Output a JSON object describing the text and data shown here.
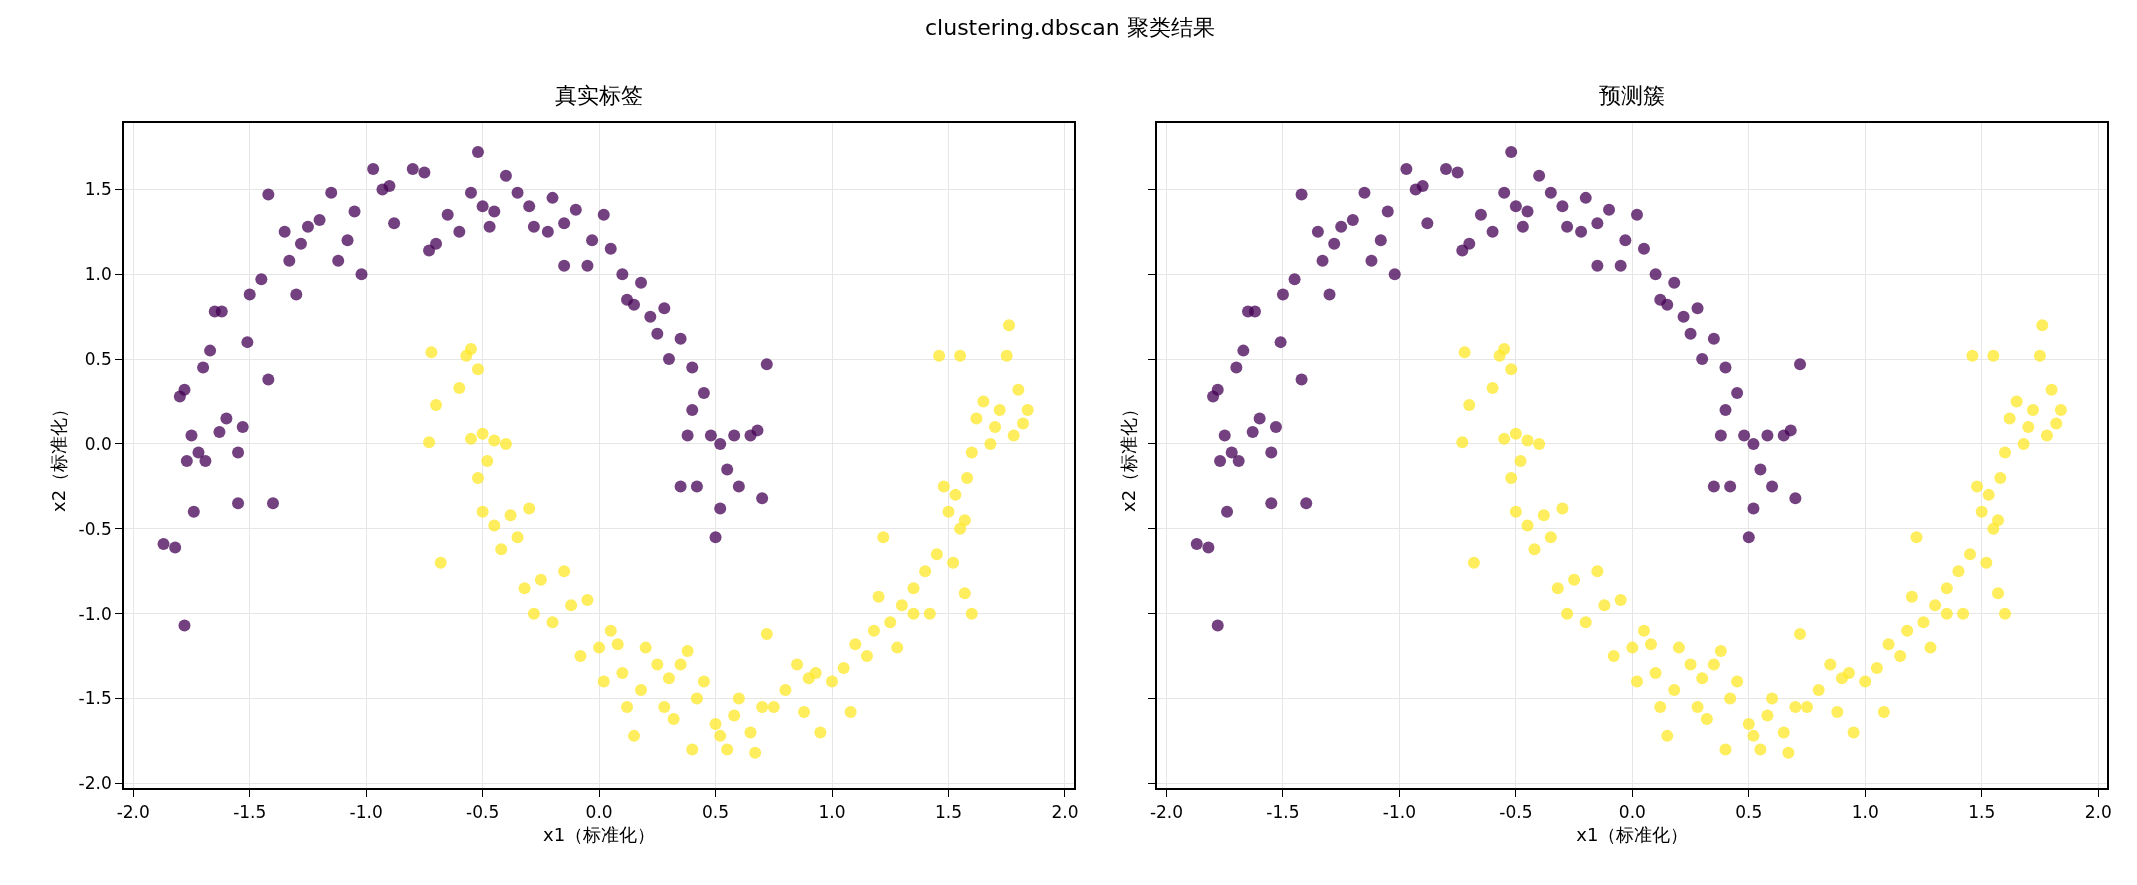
{
  "chart_data": [
    {
      "type": "scatter",
      "title": "真实标签",
      "xlabel": "x1（标准化）",
      "ylabel": "x2（标准化）",
      "annotations": [
        "clustering.dbscan 聚类结果"
      ],
      "xlim": [
        -2.04,
        2.04
      ],
      "ylim": [
        -2.03,
        1.89
      ],
      "xticks": [
        {
          "value": -2,
          "label": "-2.0"
        },
        {
          "value": -1.5,
          "label": "-1.5"
        },
        {
          "value": -1,
          "label": "-1.0"
        },
        {
          "value": -0.5,
          "label": "-0.5"
        },
        {
          "value": 0,
          "label": "0.0"
        },
        {
          "value": 0.5,
          "label": "0.5"
        },
        {
          "value": 1,
          "label": "1.0"
        },
        {
          "value": 1.5,
          "label": "1.5"
        },
        {
          "value": 2,
          "label": "2.0"
        }
      ],
      "yticks": [
        {
          "value": -2,
          "label": "-2.0"
        },
        {
          "value": -1.5,
          "label": "-1.5"
        },
        {
          "value": -1,
          "label": "-1.0"
        },
        {
          "value": -0.5,
          "label": "-0.5"
        },
        {
          "value": 0,
          "label": "0.0"
        },
        {
          "value": 0.5,
          "label": "0.5"
        },
        {
          "value": 1,
          "label": "1.0"
        },
        {
          "value": 1.5,
          "label": "1.5"
        }
      ],
      "grid": true,
      "marker": "circle",
      "series": [
        {
          "color": "#440154",
          "x": [
            -1.87,
            -1.82,
            -1.78,
            -1.8,
            -1.78,
            -1.77,
            -1.75,
            -1.74,
            -1.72,
            -1.7,
            -1.69,
            -1.67,
            -1.65,
            -1.62,
            -1.63,
            -1.6,
            -1.55,
            -1.55,
            -1.53,
            -1.51,
            -1.5,
            -1.45,
            -1.42,
            -1.42,
            -1.4,
            -1.35,
            -1.33,
            -1.3,
            -1.28,
            -1.25,
            -1.2,
            -1.15,
            -1.12,
            -1.08,
            -1.05,
            -1.02,
            -0.97,
            -0.93,
            -0.9,
            -0.88,
            -0.8,
            -0.75,
            -0.73,
            -0.7,
            -0.65,
            -0.6,
            -0.55,
            -0.52,
            -0.5,
            -0.45,
            -0.4,
            -0.35,
            -0.3,
            -0.28,
            -0.22,
            -0.2,
            -0.15,
            -0.1,
            -0.05,
            -0.03,
            0.02,
            0.05,
            0.1,
            0.12,
            0.15,
            0.18,
            0.22,
            0.25,
            0.28,
            0.35,
            0.4,
            0.45,
            0.4,
            0.48,
            0.52,
            0.58,
            0.65,
            0.55,
            0.6,
            0.52,
            0.5,
            0.42,
            0.7,
            0.68,
            0.72,
            0.38,
            -0.47,
            -0.15,
            0.3,
            0.35
          ],
          "values": [
            -0.59,
            -0.61,
            -1.07,
            0.28,
            0.32,
            -0.1,
            0.05,
            -0.4,
            -0.05,
            0.45,
            -0.1,
            0.55,
            0.78,
            0.78,
            0.07,
            0.15,
            -0.05,
            -0.35,
            0.1,
            0.6,
            0.88,
            0.97,
            1.47,
            0.38,
            -0.35,
            1.25,
            1.08,
            0.88,
            1.18,
            1.28,
            1.32,
            1.48,
            1.08,
            1.2,
            1.37,
            1.0,
            1.62,
            1.5,
            1.52,
            1.3,
            1.62,
            1.6,
            1.14,
            1.18,
            1.35,
            1.25,
            1.48,
            1.72,
            1.4,
            1.37,
            1.58,
            1.48,
            1.4,
            1.28,
            1.25,
            1.45,
            1.3,
            1.38,
            1.05,
            1.2,
            1.35,
            1.15,
            1.0,
            0.85,
            0.82,
            0.95,
            0.75,
            0.65,
            0.8,
            0.62,
            0.45,
            0.3,
            0.2,
            0.05,
            0.0,
            0.05,
            0.05,
            -0.15,
            -0.25,
            -0.38,
            -0.55,
            -0.25,
            -0.32,
            0.08,
            0.47,
            0.05,
            1.28,
            1.05,
            0.5,
            -0.25
          ]
        },
        {
          "color": "#fde725",
          "x": [
            -0.72,
            -0.7,
            -0.73,
            -0.68,
            -0.6,
            -0.57,
            -0.55,
            -0.52,
            -0.55,
            -0.5,
            -0.48,
            -0.45,
            -0.4,
            -0.52,
            -0.5,
            -0.45,
            -0.42,
            -0.38,
            -0.35,
            -0.3,
            -0.32,
            -0.28,
            -0.25,
            -0.2,
            -0.15,
            -0.12,
            -0.08,
            -0.05,
            0.0,
            0.02,
            0.05,
            0.08,
            0.1,
            0.12,
            0.15,
            0.18,
            0.2,
            0.25,
            0.28,
            0.3,
            0.32,
            0.35,
            0.38,
            0.4,
            0.42,
            0.45,
            0.5,
            0.52,
            0.55,
            0.58,
            0.6,
            0.65,
            0.67,
            0.7,
            0.75,
            0.8,
            0.85,
            0.88,
            0.9,
            0.93,
            0.95,
            1.0,
            1.05,
            1.08,
            1.1,
            1.15,
            1.18,
            1.2,
            1.22,
            1.25,
            1.28,
            1.3,
            1.35,
            1.4,
            1.42,
            1.45,
            1.48,
            1.5,
            1.52,
            1.53,
            1.55,
            1.57,
            1.58,
            1.6,
            1.62,
            1.65,
            1.68,
            1.7,
            1.72,
            1.75,
            1.76,
            1.78,
            1.8,
            1.82,
            1.84,
            1.46,
            1.55,
            1.6,
            1.57,
            1.35,
            0.72
          ],
          "values": [
            0.54,
            0.23,
            0.01,
            -0.7,
            0.33,
            0.52,
            0.56,
            0.44,
            0.03,
            0.06,
            -0.1,
            0.02,
            0.0,
            -0.2,
            -0.4,
            -0.48,
            -0.62,
            -0.42,
            -0.55,
            -0.38,
            -0.85,
            -1.0,
            -0.8,
            -1.05,
            -0.75,
            -0.95,
            -1.25,
            -0.92,
            -1.2,
            -1.4,
            -1.1,
            -1.18,
            -1.35,
            -1.55,
            -1.72,
            -1.45,
            -1.2,
            -1.3,
            -1.55,
            -1.38,
            -1.62,
            -1.3,
            -1.22,
            -1.8,
            -1.5,
            -1.4,
            -1.65,
            -1.72,
            -1.8,
            -1.6,
            -1.5,
            -1.7,
            -1.82,
            -1.55,
            -1.55,
            -1.45,
            -1.3,
            -1.58,
            -1.38,
            -1.35,
            -1.7,
            -1.4,
            -1.32,
            -1.58,
            -1.18,
            -1.25,
            -1.1,
            -0.9,
            -0.55,
            -1.05,
            -1.2,
            -0.95,
            -0.85,
            -0.75,
            -1.0,
            -0.65,
            -0.25,
            -0.4,
            -0.7,
            -0.3,
            -0.5,
            -0.45,
            -0.2,
            -0.05,
            0.15,
            0.25,
            0.0,
            0.1,
            0.2,
            0.52,
            0.7,
            0.05,
            0.32,
            0.12,
            0.2,
            0.52,
            0.52,
            -1.0,
            -0.88,
            -1.0,
            -1.12
          ]
        }
      ]
    },
    {
      "type": "scatter",
      "title": "预测簇",
      "xlabel": "x1（标准化）",
      "ylabel": "x2（标准化）",
      "tick_labels": "x",
      "xlim": [
        -2.04,
        2.04
      ],
      "ylim": [
        -2.03,
        1.89
      ],
      "xticks": [
        {
          "value": -2,
          "label": "-2.0"
        },
        {
          "value": -1.5,
          "label": "-1.5"
        },
        {
          "value": -1,
          "label": "-1.0"
        },
        {
          "value": -0.5,
          "label": "-0.5"
        },
        {
          "value": 0,
          "label": "0.0"
        },
        {
          "value": 0.5,
          "label": "0.5"
        },
        {
          "value": 1,
          "label": "1.0"
        },
        {
          "value": 1.5,
          "label": "1.5"
        },
        {
          "value": 2,
          "label": "2.0"
        }
      ],
      "yticks": [
        {
          "value": -2,
          "label": null
        },
        {
          "value": -1.5,
          "label": null
        },
        {
          "value": -1,
          "label": null
        },
        {
          "value": -0.5,
          "label": null
        },
        {
          "value": 0,
          "label": null
        },
        {
          "value": 0.5,
          "label": null
        },
        {
          "value": 1,
          "label": null
        },
        {
          "value": 1.5,
          "label": null
        }
      ],
      "grid": true,
      "marker": "circle",
      "series": [
        {
          "color": "#440154",
          "x": [
            -1.87,
            -1.82,
            -1.78,
            -1.8,
            -1.78,
            -1.77,
            -1.75,
            -1.74,
            -1.72,
            -1.7,
            -1.69,
            -1.67,
            -1.65,
            -1.62,
            -1.63,
            -1.6,
            -1.55,
            -1.55,
            -1.53,
            -1.51,
            -1.5,
            -1.45,
            -1.42,
            -1.42,
            -1.4,
            -1.35,
            -1.33,
            -1.3,
            -1.28,
            -1.25,
            -1.2,
            -1.15,
            -1.12,
            -1.08,
            -1.05,
            -1.02,
            -0.97,
            -0.93,
            -0.9,
            -0.88,
            -0.8,
            -0.75,
            -0.73,
            -0.7,
            -0.65,
            -0.6,
            -0.55,
            -0.52,
            -0.5,
            -0.45,
            -0.4,
            -0.35,
            -0.3,
            -0.28,
            -0.22,
            -0.2,
            -0.15,
            -0.1,
            -0.05,
            -0.03,
            0.02,
            0.05,
            0.1,
            0.12,
            0.15,
            0.18,
            0.22,
            0.25,
            0.28,
            0.35,
            0.4,
            0.45,
            0.4,
            0.48,
            0.52,
            0.58,
            0.65,
            0.55,
            0.6,
            0.52,
            0.5,
            0.42,
            0.7,
            0.68,
            0.72,
            0.38,
            -0.47,
            -0.15,
            0.3,
            0.35
          ],
          "values": [
            -0.59,
            -0.61,
            -1.07,
            0.28,
            0.32,
            -0.1,
            0.05,
            -0.4,
            -0.05,
            0.45,
            -0.1,
            0.55,
            0.78,
            0.78,
            0.07,
            0.15,
            -0.05,
            -0.35,
            0.1,
            0.6,
            0.88,
            0.97,
            1.47,
            0.38,
            -0.35,
            1.25,
            1.08,
            0.88,
            1.18,
            1.28,
            1.32,
            1.48,
            1.08,
            1.2,
            1.37,
            1.0,
            1.62,
            1.5,
            1.52,
            1.3,
            1.62,
            1.6,
            1.14,
            1.18,
            1.35,
            1.25,
            1.48,
            1.72,
            1.4,
            1.37,
            1.58,
            1.48,
            1.4,
            1.28,
            1.25,
            1.45,
            1.3,
            1.38,
            1.05,
            1.2,
            1.35,
            1.15,
            1.0,
            0.85,
            0.82,
            0.95,
            0.75,
            0.65,
            0.8,
            0.62,
            0.45,
            0.3,
            0.2,
            0.05,
            0.0,
            0.05,
            0.05,
            -0.15,
            -0.25,
            -0.38,
            -0.55,
            -0.25,
            -0.32,
            0.08,
            0.47,
            0.05,
            1.28,
            1.05,
            0.5,
            -0.25
          ]
        },
        {
          "color": "#fde725",
          "x": [
            -0.72,
            -0.7,
            -0.73,
            -0.68,
            -0.6,
            -0.57,
            -0.55,
            -0.52,
            -0.55,
            -0.5,
            -0.48,
            -0.45,
            -0.4,
            -0.52,
            -0.5,
            -0.45,
            -0.42,
            -0.38,
            -0.35,
            -0.3,
            -0.32,
            -0.28,
            -0.25,
            -0.2,
            -0.15,
            -0.12,
            -0.08,
            -0.05,
            0.0,
            0.02,
            0.05,
            0.08,
            0.1,
            0.12,
            0.15,
            0.18,
            0.2,
            0.25,
            0.28,
            0.3,
            0.32,
            0.35,
            0.38,
            0.4,
            0.42,
            0.45,
            0.5,
            0.52,
            0.55,
            0.58,
            0.6,
            0.65,
            0.67,
            0.7,
            0.75,
            0.8,
            0.85,
            0.88,
            0.9,
            0.93,
            0.95,
            1.0,
            1.05,
            1.08,
            1.1,
            1.15,
            1.18,
            1.2,
            1.22,
            1.25,
            1.28,
            1.3,
            1.35,
            1.4,
            1.42,
            1.45,
            1.48,
            1.5,
            1.52,
            1.53,
            1.55,
            1.57,
            1.58,
            1.6,
            1.62,
            1.65,
            1.68,
            1.7,
            1.72,
            1.75,
            1.76,
            1.78,
            1.8,
            1.82,
            1.84,
            1.46,
            1.55,
            1.6,
            1.57,
            1.35,
            0.72
          ],
          "values": [
            0.54,
            0.23,
            0.01,
            -0.7,
            0.33,
            0.52,
            0.56,
            0.44,
            0.03,
            0.06,
            -0.1,
            0.02,
            0.0,
            -0.2,
            -0.4,
            -0.48,
            -0.62,
            -0.42,
            -0.55,
            -0.38,
            -0.85,
            -1.0,
            -0.8,
            -1.05,
            -0.75,
            -0.95,
            -1.25,
            -0.92,
            -1.2,
            -1.4,
            -1.1,
            -1.18,
            -1.35,
            -1.55,
            -1.72,
            -1.45,
            -1.2,
            -1.3,
            -1.55,
            -1.38,
            -1.62,
            -1.3,
            -1.22,
            -1.8,
            -1.5,
            -1.4,
            -1.65,
            -1.72,
            -1.8,
            -1.6,
            -1.5,
            -1.7,
            -1.82,
            -1.55,
            -1.55,
            -1.45,
            -1.3,
            -1.58,
            -1.38,
            -1.35,
            -1.7,
            -1.4,
            -1.32,
            -1.58,
            -1.18,
            -1.25,
            -1.1,
            -0.9,
            -0.55,
            -1.05,
            -1.2,
            -0.95,
            -0.85,
            -0.75,
            -1.0,
            -0.65,
            -0.25,
            -0.4,
            -0.7,
            -0.3,
            -0.5,
            -0.45,
            -0.2,
            -0.05,
            0.15,
            0.25,
            0.0,
            0.1,
            0.2,
            0.52,
            0.7,
            0.05,
            0.32,
            0.12,
            0.2,
            0.52,
            0.52,
            -1.0,
            -0.88,
            -1.0,
            -1.12
          ]
        }
      ]
    }
  ]
}
